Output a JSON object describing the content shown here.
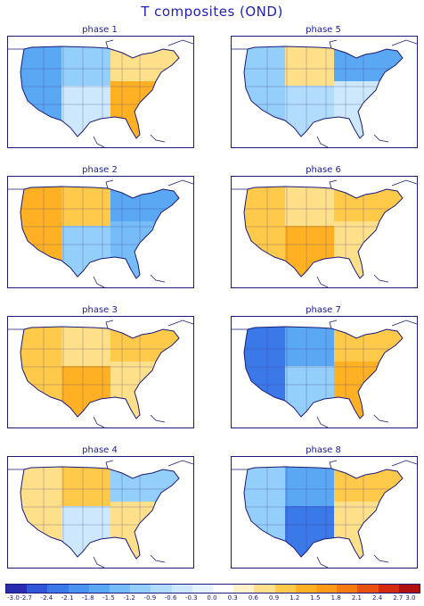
{
  "title": "T composites (OND)",
  "panels": [
    {
      "label": "phase 1",
      "scheme": "wbw",
      "warm_east": true
    },
    {
      "label": "phase 5",
      "scheme": "mixed",
      "warm_east": false
    },
    {
      "label": "phase 2",
      "scheme": "nw_warm",
      "warm_east": false
    },
    {
      "label": "phase 6",
      "scheme": "warm",
      "warm_east": true
    },
    {
      "label": "phase 3",
      "scheme": "warm",
      "warm_east": true
    },
    {
      "label": "phase 7",
      "scheme": "cold_n",
      "warm_east": true
    },
    {
      "label": "phase 4",
      "scheme": "mixed_warm",
      "warm_east": false
    },
    {
      "label": "phase 8",
      "scheme": "cold_e",
      "warm_east": false
    }
  ],
  "colorbar": {
    "ticks": [
      "-3.0",
      "-2.7",
      "-2.4",
      "-2.1",
      "-1.8",
      "-1.5",
      "-1.2",
      "-0.9",
      "-0.6",
      "-0.3",
      "0.0",
      "0.3",
      "0.6",
      "0.9",
      "1.2",
      "1.5",
      "1.8",
      "2.1",
      "2.4",
      "2.7",
      "3.0"
    ],
    "colors": [
      "#2a2cb0",
      "#2f57d8",
      "#3b78e8",
      "#4a94f0",
      "#5aa8f4",
      "#76bcf8",
      "#94cefa",
      "#b2dcfc",
      "#cde8fc",
      "#e4f3fd",
      "#ffffff",
      "#fff2c8",
      "#ffe08a",
      "#ffc94a",
      "#ffb023",
      "#ff9a14",
      "#f57a10",
      "#e8520e",
      "#d32a10",
      "#b01010"
    ]
  }
}
